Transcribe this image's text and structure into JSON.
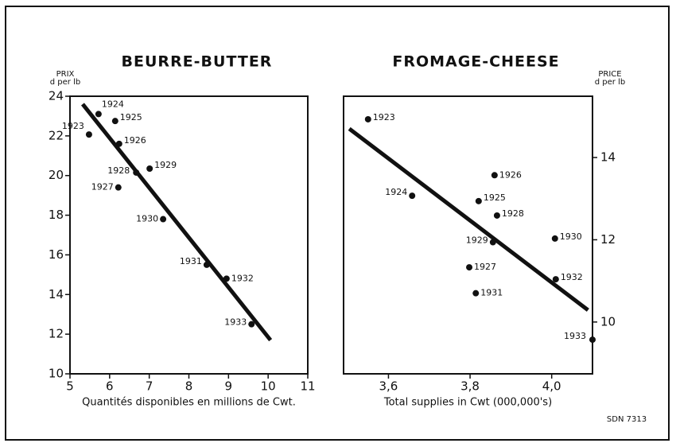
{
  "chart_data": [
    {
      "type": "scatter",
      "title": "BEURRE-BUTTER",
      "y_label": [
        "PRIX",
        "d per lb"
      ],
      "y_axis_side": "left",
      "x_label": "Quantités disponibles en millions de Cwt.",
      "point_labels": [
        "1923",
        "1924",
        "1925",
        "1926",
        "1928",
        "1929",
        "1927",
        "1930",
        "1931",
        "1932",
        "1933"
      ],
      "x": [
        5.48,
        5.72,
        6.14,
        6.24,
        6.67,
        7.01,
        6.22,
        7.35,
        8.45,
        8.95,
        9.58
      ],
      "y": [
        22.07,
        23.1,
        22.75,
        21.6,
        20.15,
        20.35,
        19.4,
        17.8,
        15.5,
        14.8,
        12.5
      ],
      "trendline": {
        "x": [
          5.32,
          10.06
        ],
        "y": [
          23.6,
          11.7
        ]
      },
      "color": "#111111",
      "xlim": [
        5,
        11
      ],
      "xticks": [
        5,
        6,
        7,
        8,
        9,
        10,
        11
      ],
      "ylim": [
        10,
        24
      ],
      "yticks": [
        10,
        12,
        14,
        16,
        18,
        20,
        22,
        24
      ]
    },
    {
      "type": "scatter",
      "title": "FROMAGE-CHEESE",
      "y_label": [
        "PRICE",
        "d per lb"
      ],
      "y_axis_side": "right",
      "x_label": "Total supplies in Cwt (000,000's)",
      "point_labels": [
        "1923",
        "1924",
        "1926",
        "1925",
        "1928",
        "1929",
        "1930",
        "1927",
        "1932",
        "1931",
        "1933"
      ],
      "x": [
        3.55,
        3.658,
        3.86,
        3.821,
        3.866,
        3.856,
        4.008,
        3.798,
        4.01,
        3.814,
        4.1
      ],
      "y": [
        14.93,
        13.07,
        13.57,
        12.94,
        12.59,
        11.94,
        12.03,
        11.33,
        11.04,
        10.7,
        9.57
      ],
      "trendline": {
        "x": [
          3.504,
          4.089
        ],
        "y": [
          14.7,
          10.29
        ]
      },
      "color": "#111111",
      "xlim": [
        3.49,
        4.1
      ],
      "xticks": [
        {
          "value": 3.6,
          "label": "3,6"
        },
        {
          "value": 3.8,
          "label": "3,8"
        },
        {
          "value": 4.0,
          "label": "4,0"
        }
      ],
      "ylim": [
        8.74,
        15.49
      ],
      "yticks": [
        10,
        12,
        14
      ]
    }
  ],
  "footer": "SDN 7313"
}
